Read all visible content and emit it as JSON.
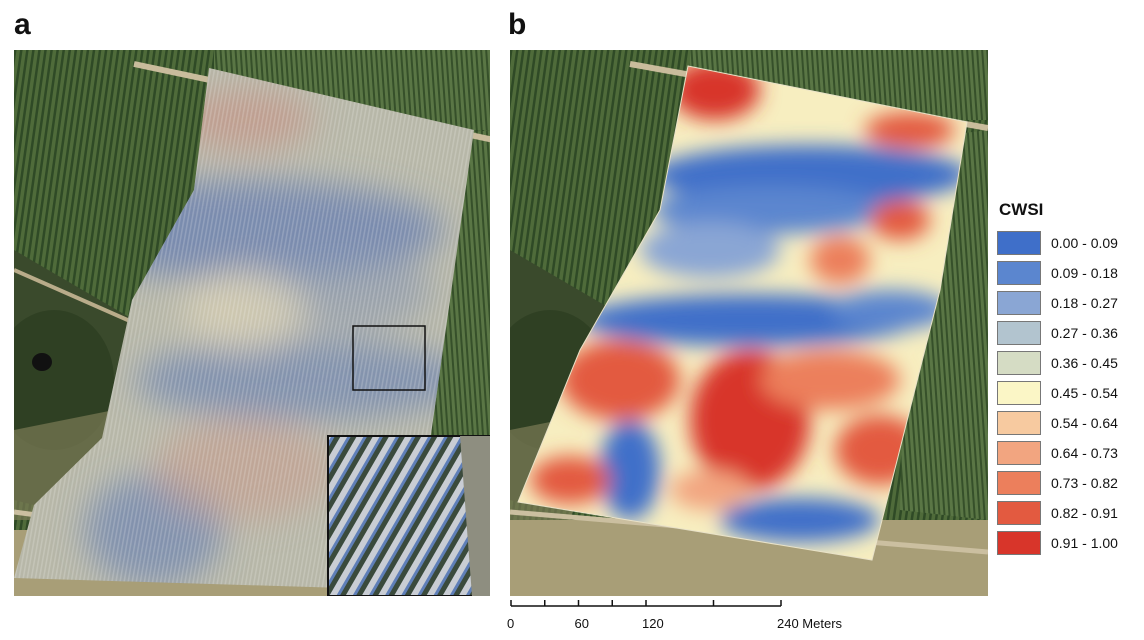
{
  "panels": [
    {
      "letter": "a"
    },
    {
      "letter": "b"
    }
  ],
  "legend": {
    "title": "CWSI",
    "classes": [
      {
        "label": "0.00 - 0.09",
        "color": "#3f6fc9"
      },
      {
        "label": "0.09 - 0.18",
        "color": "#5b86cf"
      },
      {
        "label": "0.18 - 0.27",
        "color": "#8aa6d4"
      },
      {
        "label": "0.27 - 0.36",
        "color": "#b2c4cf"
      },
      {
        "label": "0.36 - 0.45",
        "color": "#d5dcc4"
      },
      {
        "label": "0.45 - 0.54",
        "color": "#fbf6c6"
      },
      {
        "label": "0.54 - 0.64",
        "color": "#f7caa0"
      },
      {
        "label": "0.64 - 0.73",
        "color": "#f2a580"
      },
      {
        "label": "0.73 - 0.82",
        "color": "#ec7f5c"
      },
      {
        "label": "0.82 - 0.91",
        "color": "#e35a40"
      },
      {
        "label": "0.91 - 1.00",
        "color": "#d8352a"
      }
    ]
  },
  "scale_bar": {
    "ticks": [
      0,
      30,
      60,
      90,
      120,
      180,
      240
    ],
    "labels": [
      {
        "value": 0,
        "text": "0"
      },
      {
        "value": 60,
        "text": "60"
      },
      {
        "value": 120,
        "text": "120"
      },
      {
        "value": 240,
        "text": "240 Meters"
      }
    ]
  }
}
